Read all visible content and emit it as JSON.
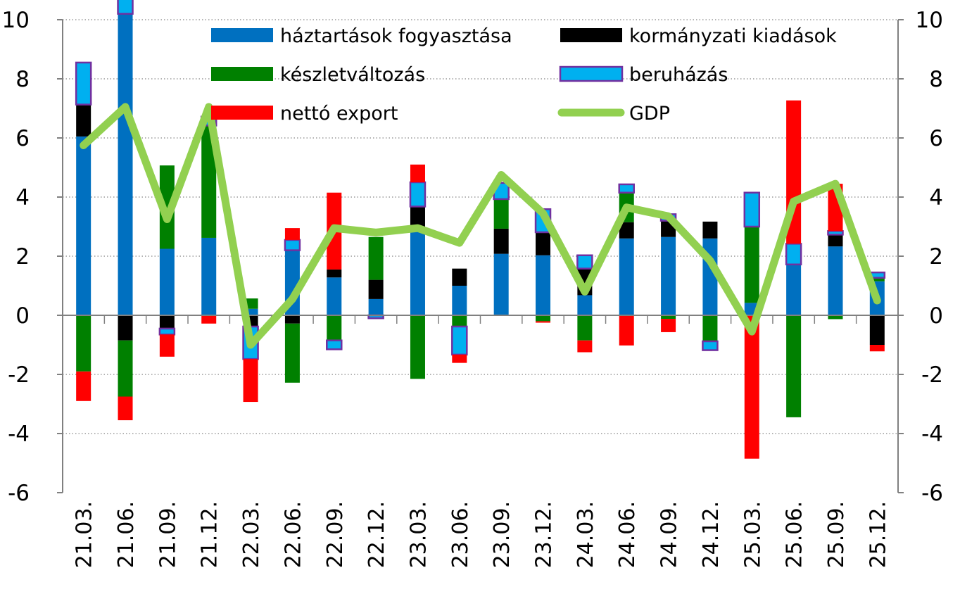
{
  "chart_data": {
    "type": "bar",
    "stacked": true,
    "categories": [
      "21.03.",
      "21.06.",
      "21.09.",
      "21.12.",
      "22.03.",
      "22.06.",
      "22.09.",
      "22.12.",
      "23.03.",
      "23.06.",
      "23.09.",
      "23.12.",
      "24.03.",
      "24.06.",
      "24.09.",
      "24.12.",
      "25.03.",
      "25.06.",
      "25.09.",
      "25.12."
    ],
    "ylim": [
      -6,
      10
    ],
    "yticks": [
      "10",
      "8",
      "6",
      "4",
      "2",
      "0",
      "-2",
      "-4",
      "-6"
    ],
    "y2ticks": [
      "10",
      "8",
      "6",
      "4",
      "2",
      "0",
      "-2",
      "-4",
      "-6"
    ],
    "grid": "horizontal dotted",
    "legend_position": "top",
    "series": [
      {
        "name": "háztartások fogyasztása",
        "color": "#0070C0",
        "kind": "bar",
        "values": [
          6.05,
          10.2,
          2.25,
          2.62,
          0.22,
          2.2,
          1.28,
          0.55,
          2.9,
          1.0,
          2.08,
          2.03,
          0.68,
          2.6,
          2.65,
          2.6,
          0.42,
          1.72,
          2.33,
          1.15
        ]
      },
      {
        "name": "kormányzati kiadások",
        "color": "#000000",
        "kind": "bar",
        "values": [
          1.08,
          -0.85,
          -0.45,
          0.0,
          -0.38,
          -0.28,
          0.27,
          0.65,
          0.78,
          0.58,
          0.85,
          0.78,
          0.9,
          0.55,
          0.55,
          0.57,
          0.0,
          0.0,
          0.4,
          -1.0
        ]
      },
      {
        "name": "készletváltozás",
        "color": "#008000",
        "kind": "bar",
        "values": [
          -1.9,
          -1.9,
          2.82,
          3.8,
          0.35,
          -2.0,
          -0.85,
          1.45,
          -2.15,
          -0.38,
          1.0,
          -0.2,
          -0.85,
          1.0,
          -0.12,
          -0.88,
          2.58,
          -3.45,
          -0.13,
          0.12
        ]
      },
      {
        "name": "beruházás",
        "color": "#00B0F0",
        "kind": "bar",
        "values": [
          1.42,
          0.55,
          -0.2,
          0.3,
          -1.1,
          0.35,
          -0.3,
          -0.1,
          0.82,
          -0.95,
          0.55,
          0.78,
          0.45,
          0.28,
          0.22,
          -0.3,
          1.15,
          0.7,
          0.12,
          0.18
        ]
      },
      {
        "name": "nettó export",
        "color": "#FF0000",
        "kind": "bar",
        "values": [
          -1.0,
          -0.8,
          -0.75,
          -0.28,
          -1.45,
          0.4,
          2.6,
          0.0,
          0.6,
          -0.28,
          0.0,
          -0.05,
          -0.4,
          -1.02,
          -0.45,
          0.0,
          -4.85,
          4.85,
          1.6,
          -0.22
        ]
      },
      {
        "name": "GDP",
        "color": "#92D050",
        "kind": "line",
        "values": [
          5.75,
          7.05,
          3.25,
          7.05,
          -1.0,
          0.55,
          2.95,
          2.8,
          2.95,
          2.45,
          4.75,
          3.45,
          0.8,
          3.65,
          3.35,
          1.85,
          -0.55,
          3.85,
          4.45,
          0.5
        ]
      }
    ]
  }
}
